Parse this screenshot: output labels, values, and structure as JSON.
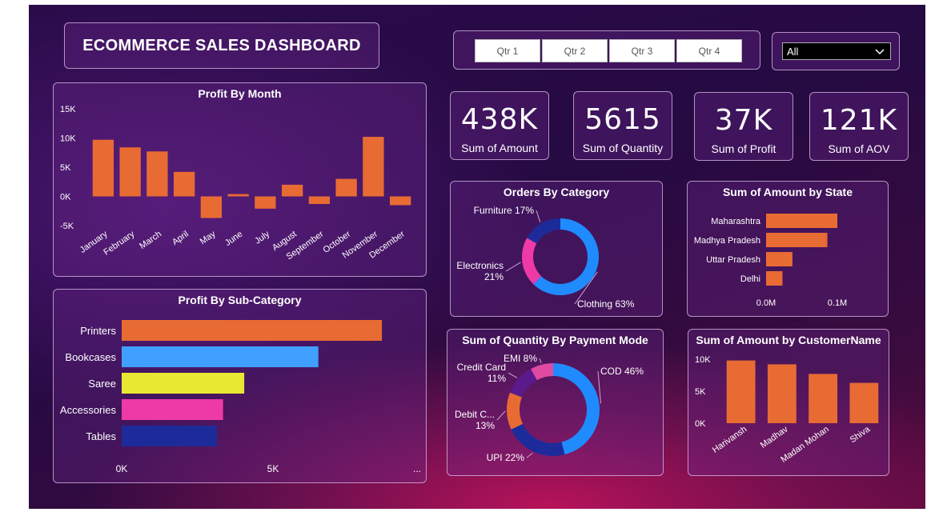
{
  "header": {
    "title": "ECOMMERCE SALES DASHBOARD"
  },
  "slicer": {
    "quarters": [
      "Qtr 1",
      "Qtr 2",
      "Qtr 3",
      "Qtr 4"
    ],
    "dropdown_value": "All"
  },
  "kpis": [
    {
      "value": "438K",
      "label": "Sum of Amount"
    },
    {
      "value": "5615",
      "label": "Sum of Quantity"
    },
    {
      "value": "37K",
      "label": "Sum of Profit"
    },
    {
      "value": "121K",
      "label": "Sum of AOV"
    }
  ],
  "colors": {
    "orange": "#e86b34",
    "blue": "#1f8bff",
    "light_blue": "#3fa0ff",
    "yellow": "#e8e833",
    "pink": "#ee3aa6",
    "navy": "#1d2b9a",
    "purple": "#5a1a8c",
    "dark_purple": "#6a1a7a"
  },
  "chart_data": [
    {
      "id": "profit_by_month",
      "type": "bar",
      "title": "Profit By Month",
      "categories": [
        "January",
        "February",
        "March",
        "April",
        "May",
        "June",
        "July",
        "August",
        "September",
        "October",
        "November",
        "December"
      ],
      "values": [
        9700,
        8400,
        7700,
        4200,
        -3700,
        400,
        -2100,
        2000,
        -1300,
        3000,
        10200,
        -1500
      ],
      "ylim": [
        -5000,
        15000
      ],
      "yticks": [
        -5000,
        0,
        5000,
        10000,
        15000
      ],
      "ytick_labels": [
        "-5K",
        "0K",
        "5K",
        "10K",
        "15K"
      ]
    },
    {
      "id": "profit_by_subcategory",
      "type": "bar",
      "orientation": "horizontal",
      "title": "Profit By Sub-Category",
      "categories": [
        "Printers",
        "Bookcases",
        "Saree",
        "Accessories",
        "Tables"
      ],
      "values": [
        8600,
        6500,
        4050,
        3350,
        3150
      ],
      "xlim": [
        0,
        10000
      ],
      "xtick_labels": [
        "0K",
        "5K",
        "..."
      ]
    },
    {
      "id": "orders_by_category",
      "type": "pie",
      "donut": true,
      "title": "Orders By Category",
      "slices": [
        {
          "name": "Clothing",
          "value": 63,
          "label": "Clothing 63%"
        },
        {
          "name": "Electronics",
          "value": 21,
          "label1": "Electronics",
          "label2": "21%"
        },
        {
          "name": "Furniture",
          "value": 17,
          "label": "Furniture 17%"
        }
      ]
    },
    {
      "id": "amount_by_state",
      "type": "bar",
      "orientation": "horizontal",
      "title": "Sum of Amount by State",
      "categories": [
        "Maharashtra",
        "Madhya Pradesh",
        "Uttar Pradesh",
        "Delhi"
      ],
      "values": [
        0.1,
        0.086,
        0.037,
        0.023
      ],
      "xlim": [
        0,
        0.2
      ],
      "xtick_labels": [
        "0.0M",
        "0.1M"
      ]
    },
    {
      "id": "quantity_by_payment_mode",
      "type": "pie",
      "donut": true,
      "title": "Sum of Quantity By Payment Mode",
      "slices": [
        {
          "name": "COD",
          "value": 46,
          "label": "COD 46%"
        },
        {
          "name": "UPI",
          "value": 22,
          "label": "UPI 22%"
        },
        {
          "name": "Debit C...",
          "value": 13,
          "label1": "Debit C...",
          "label2": "13%"
        },
        {
          "name": "Credit Card",
          "value": 11,
          "label1": "Credit Card",
          "label2": "11%"
        },
        {
          "name": "EMI",
          "value": 8,
          "label": "EMI 8%"
        }
      ]
    },
    {
      "id": "amount_by_customer",
      "type": "bar",
      "title": "Sum of Amount by CustomerName",
      "categories": [
        "Harivansh",
        "Madhav",
        "Madan Mohan",
        "Shiva"
      ],
      "values": [
        9800,
        9200,
        7700,
        6300
      ],
      "ylim": [
        0,
        10000
      ],
      "ytick_labels": [
        "0K",
        "5K",
        "10K"
      ]
    }
  ]
}
